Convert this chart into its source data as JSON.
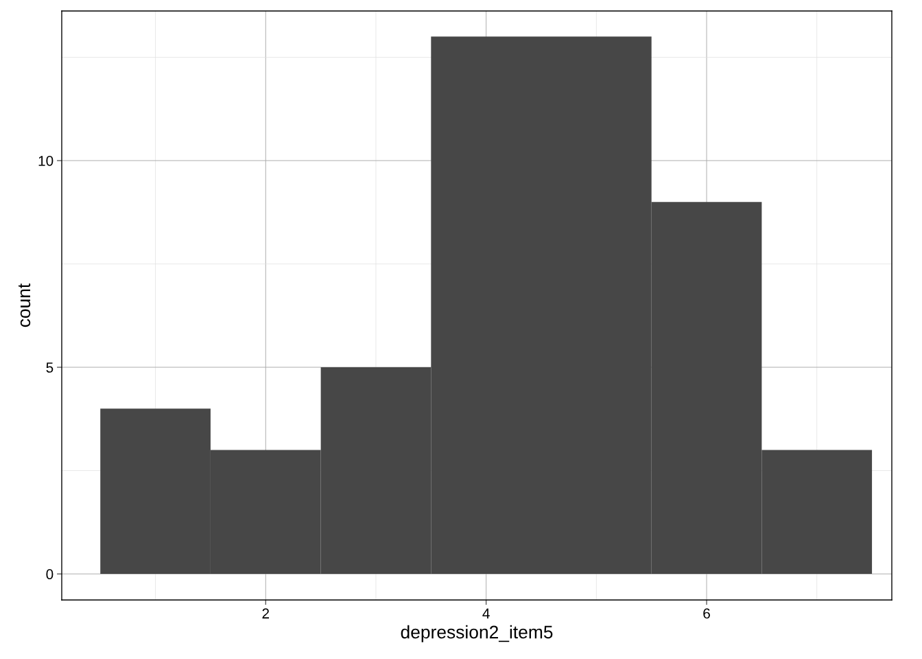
{
  "chart_data": {
    "type": "histogram",
    "xlabel": "depression2_item5",
    "ylabel": "count",
    "bins": [
      0.5,
      1.5,
      2.5,
      3.5,
      4.5,
      5.5,
      6.5,
      7.5
    ],
    "values": [
      4,
      3,
      5,
      13,
      13,
      9,
      3
    ],
    "color": "#474747",
    "xlim": [
      0.15,
      7.68
    ],
    "ylim": [
      -0.63,
      13.62
    ],
    "xticks": [
      {
        "value": 1,
        "label": null
      },
      2,
      {
        "value": 3,
        "label": null
      },
      4,
      {
        "value": 5,
        "label": null
      },
      6,
      {
        "value": 7,
        "label": null
      }
    ],
    "yticks": [
      0,
      {
        "value": 2.5,
        "label": null
      },
      5,
      {
        "value": 7.5,
        "label": null
      },
      10,
      {
        "value": 12.5,
        "label": null
      }
    ],
    "grid": true
  }
}
